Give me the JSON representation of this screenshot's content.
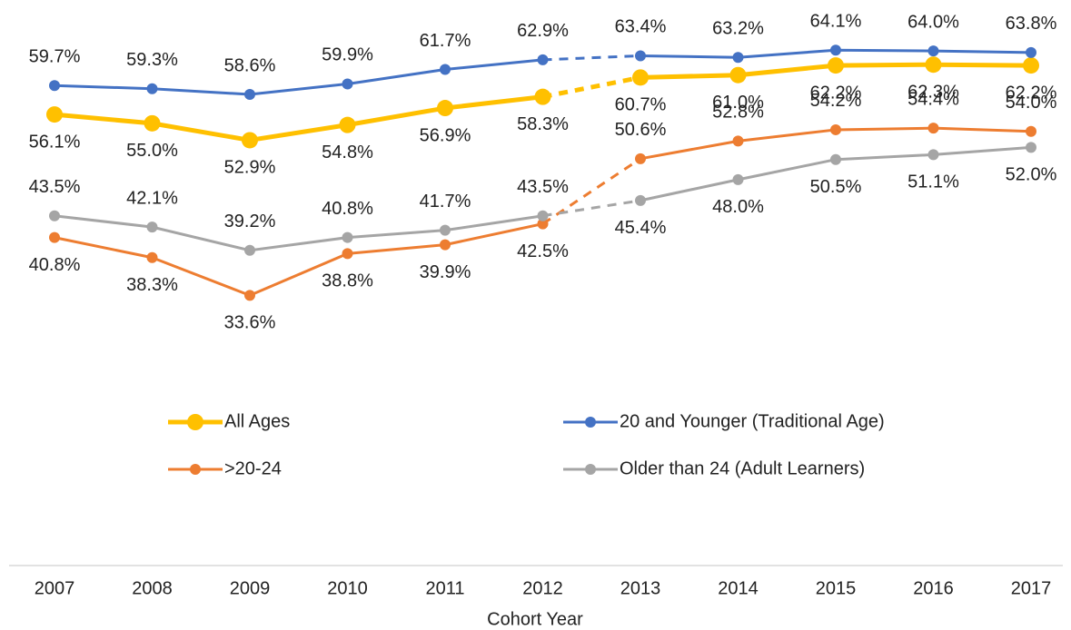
{
  "chart_data": {
    "type": "line",
    "x_label": "Cohort Year",
    "categories": [
      "2007",
      "2008",
      "2009",
      "2010",
      "2011",
      "2012",
      "2013",
      "2014",
      "2015",
      "2016",
      "2017"
    ],
    "projected_from": "2012",
    "ylim": [
      0,
      70
    ],
    "legend": "center",
    "series": [
      {
        "name": "All Ages",
        "color": "#FFC000",
        "values": [
          56.1,
          55.0,
          52.9,
          54.8,
          56.9,
          58.3,
          60.7,
          61.0,
          62.2,
          62.3,
          62.2
        ],
        "value_labels": [
          "56.1%",
          "55.0%",
          "52.9%",
          "54.8%",
          "56.9%",
          "58.3%",
          "60.7%",
          "61.0%",
          "62.2%",
          "62.3%",
          "62.2%"
        ]
      },
      {
        "name": "20 and Younger (Traditional Age)",
        "color": "#4472C4",
        "values": [
          59.7,
          59.3,
          58.6,
          59.9,
          61.7,
          62.9,
          63.4,
          63.2,
          64.1,
          64.0,
          63.8
        ],
        "value_labels": [
          "59.7%",
          "59.3%",
          "58.6%",
          "59.9%",
          "61.7%",
          "62.9%",
          "63.4%",
          "63.2%",
          "64.1%",
          "64.0%",
          "63.8%"
        ]
      },
      {
        "name": ">20-24",
        "color": "#ED7D31",
        "values": [
          40.8,
          38.3,
          33.6,
          38.8,
          39.9,
          42.5,
          50.6,
          52.8,
          54.2,
          54.4,
          54.0
        ],
        "value_labels": [
          "40.8%",
          "38.3%",
          "33.6%",
          "38.8%",
          "39.9%",
          "42.5%",
          "50.6%",
          "52.8%",
          "54.2%",
          "54.4%",
          "54.0%"
        ]
      },
      {
        "name": "Older than 24 (Adult Learners)",
        "color": "#A5A5A5",
        "values": [
          43.5,
          42.1,
          39.2,
          40.8,
          41.7,
          43.5,
          45.4,
          48.0,
          50.5,
          51.1,
          52.0
        ],
        "value_labels": [
          "43.5%",
          "42.1%",
          "39.2%",
          "40.8%",
          "41.7%",
          "43.5%",
          "45.4%",
          "48.0%",
          "50.5%",
          "51.1%",
          "52.0%"
        ]
      }
    ]
  }
}
